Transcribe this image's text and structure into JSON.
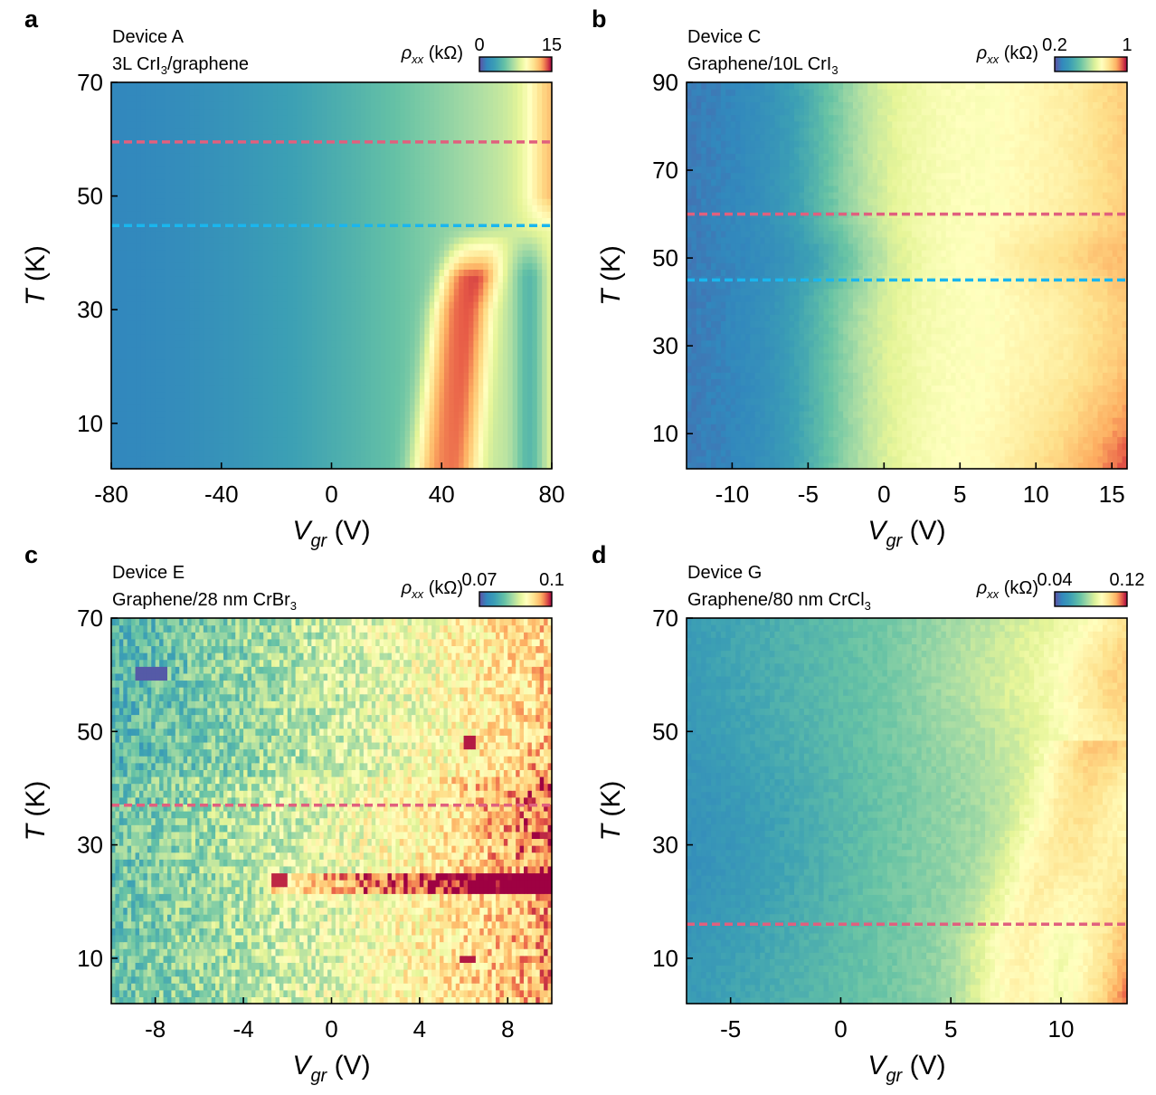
{
  "chart_data": [
    {
      "type": "heatmap",
      "panel_label": "a",
      "device": "Device A",
      "sample": {
        "prefix": "3L CrI",
        "sub": "3",
        "suffix": "/graphene"
      },
      "xlabel": {
        "var": "V",
        "sub": "gr",
        "unit": " (V)"
      },
      "ylabel": {
        "var": "T",
        "unit": " (K)"
      },
      "xlim": [
        -80,
        80
      ],
      "ylim": [
        2,
        70
      ],
      "xticks": [
        -80,
        -40,
        0,
        40,
        80
      ],
      "yticks": [
        10,
        30,
        50,
        70
      ],
      "colorbar": {
        "label_var": "ρ",
        "label_sub": "xx",
        "label_unit": " (kΩ)",
        "min": 0,
        "max": 15,
        "min_label": "0",
        "max_label": "15"
      },
      "lines": [
        {
          "y": 59.5,
          "color": "#e0607e"
        },
        {
          "y": 44.8,
          "color": "#1ab6ee"
        }
      ],
      "grid": false
    },
    {
      "type": "heatmap",
      "panel_label": "b",
      "device": "Device C",
      "sample": {
        "prefix": "Graphene/10L CrI",
        "sub": "3",
        "suffix": ""
      },
      "xlabel": {
        "var": "V",
        "sub": "gr",
        "unit": " (V)"
      },
      "ylabel": {
        "var": "T",
        "unit": " (K)"
      },
      "xlim": [
        -13,
        16
      ],
      "ylim": [
        2,
        90
      ],
      "xticks": [
        -10,
        -5,
        0,
        5,
        10,
        15
      ],
      "yticks": [
        10,
        30,
        50,
        70,
        90
      ],
      "colorbar": {
        "label_var": "ρ",
        "label_sub": "xx",
        "label_unit": " (kΩ)",
        "min": 0.2,
        "max": 1,
        "min_label": "0.2",
        "max_label": "1"
      },
      "lines": [
        {
          "y": 60,
          "color": "#e0607e"
        },
        {
          "y": 45,
          "color": "#1ab6ee"
        }
      ],
      "grid": false
    },
    {
      "type": "heatmap",
      "panel_label": "c",
      "device": "Device E",
      "sample": {
        "prefix": "Graphene/28 nm CrBr",
        "sub": "3",
        "suffix": ""
      },
      "xlabel": {
        "var": "V",
        "sub": "gr",
        "unit": " (V)"
      },
      "ylabel": {
        "var": "T",
        "unit": " (K)"
      },
      "xlim": [
        -10,
        10
      ],
      "ylim": [
        2,
        70
      ],
      "xticks": [
        -8,
        -4,
        0,
        4,
        8
      ],
      "yticks": [
        10,
        30,
        50,
        70
      ],
      "colorbar": {
        "label_var": "ρ",
        "label_sub": "xx",
        "label_unit": " (kΩ)",
        "min": 0.07,
        "max": 0.1,
        "min_label": "0.07",
        "max_label": "0.1"
      },
      "lines": [
        {
          "y": 37,
          "color": "#e0607e"
        }
      ],
      "grid": false
    },
    {
      "type": "heatmap",
      "panel_label": "d",
      "device": "Device G",
      "sample": {
        "prefix": "Graphene/80 nm CrCl",
        "sub": "3",
        "suffix": ""
      },
      "xlabel": {
        "var": "V",
        "sub": "gr",
        "unit": " (V)"
      },
      "ylabel": {
        "var": "T",
        "unit": " (K)"
      },
      "xlim": [
        -7,
        13
      ],
      "ylim": [
        2,
        70
      ],
      "xticks": [
        -5,
        0,
        5,
        10
      ],
      "yticks": [
        10,
        30,
        50,
        70
      ],
      "colorbar": {
        "label_var": "ρ",
        "label_sub": "xx",
        "label_unit": " (kΩ)",
        "min": 0.04,
        "max": 0.12,
        "min_label": "0.04",
        "max_label": "0.12"
      },
      "lines": [
        {
          "y": 16,
          "color": "#e0607e"
        }
      ],
      "grid": false
    }
  ]
}
